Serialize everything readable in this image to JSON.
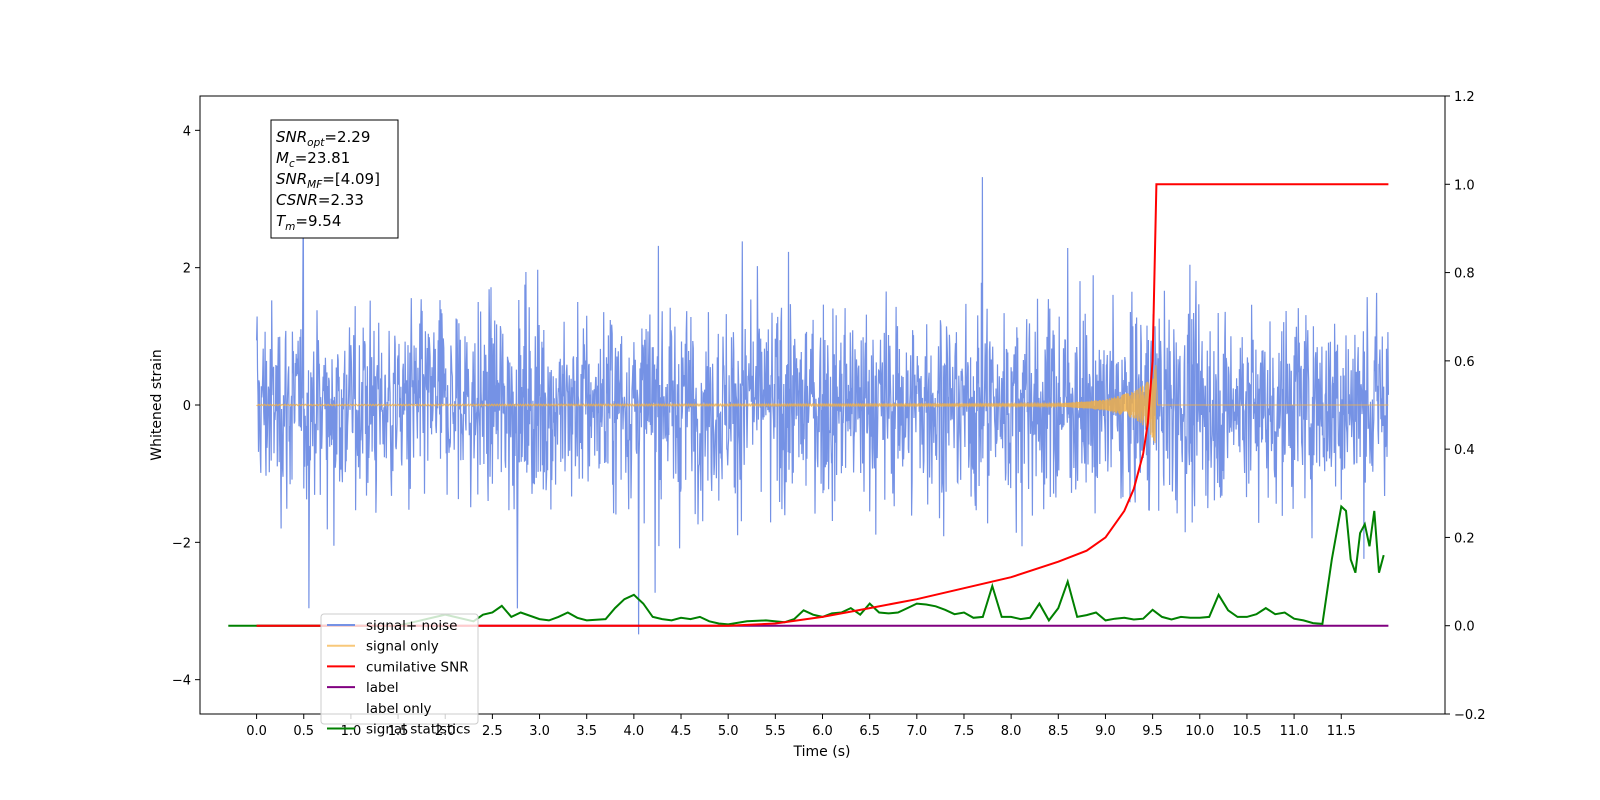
{
  "chart_data": {
    "type": "line",
    "xlabel": "Time (s)",
    "ylabel": "Whitened strain",
    "xlim": [
      -0.6,
      12.6
    ],
    "ylim": [
      -4.5,
      4.5
    ],
    "y2lim": [
      -0.2,
      1.2
    ],
    "x_ticks": [
      "0.0",
      "0.5",
      "1.0",
      "1.5",
      "2.0",
      "2.5",
      "3.0",
      "3.5",
      "4.0",
      "4.5",
      "5.0",
      "5.5",
      "6.0",
      "6.5",
      "7.0",
      "7.5",
      "8.0",
      "8.5",
      "9.0",
      "9.5",
      "10.0",
      "10.5",
      "11.0",
      "11.5"
    ],
    "y_ticks": [
      "4",
      "2",
      "0",
      "−2",
      "−4"
    ],
    "y2_ticks": [
      "1.2",
      "1.0",
      "0.8",
      "0.6",
      "0.4",
      "0.2",
      "0.0",
      "−0.2"
    ],
    "legend_position": "lower-left",
    "legend": [
      "signal+ noise",
      "signal only",
      "cumilative SNR",
      "label",
      "label only",
      "signal statistics"
    ],
    "annotation_lines": [
      {
        "var": "SNR",
        "sub": "opt",
        "value": "=2.29"
      },
      {
        "var": "M",
        "sub": "c",
        "value": "=23.81"
      },
      {
        "var": "SNR",
        "sub": "MF",
        "value": "=[4.09]"
      },
      {
        "var": "CSNR",
        "sub": "",
        "value": "=2.33"
      },
      {
        "var": "T",
        "sub": "m",
        "value": "=9.54"
      }
    ],
    "colors": {
      "signal_noise": "#7592e5",
      "signal_only": "#f5b041",
      "cumulative_snr": "#ff0000",
      "label": "#800080",
      "signal_statistics": "#008000"
    },
    "series": [
      {
        "name": "signal+ noise",
        "axis": "left",
        "x_range": [
          0.0,
          12.0
        ],
        "envelope_approx": [
          -4.0,
          4.1
        ]
      },
      {
        "name": "signal only",
        "axis": "left",
        "x": [
          0.0,
          8.5,
          9.0,
          9.3,
          9.45,
          9.54,
          9.55,
          12.0
        ],
        "amplitude": [
          0.01,
          0.02,
          0.08,
          0.2,
          0.35,
          0.6,
          0.0,
          0.0
        ]
      },
      {
        "name": "cumilative SNR",
        "axis": "right",
        "x": [
          0.0,
          5.0,
          5.5,
          6.0,
          6.5,
          7.0,
          7.5,
          8.0,
          8.5,
          8.8,
          9.0,
          9.2,
          9.3,
          9.4,
          9.45,
          9.5,
          9.52,
          9.54,
          12.0
        ],
        "y": [
          0.0,
          0.0,
          0.005,
          0.02,
          0.04,
          0.06,
          0.085,
          0.11,
          0.145,
          0.17,
          0.2,
          0.26,
          0.31,
          0.39,
          0.46,
          0.6,
          0.8,
          1.0,
          1.0
        ]
      },
      {
        "name": "label",
        "axis": "right",
        "x": [
          0.0,
          12.0
        ],
        "y": [
          0.0,
          0.0
        ]
      },
      {
        "name": "signal statistics",
        "axis": "right",
        "x": [
          -0.3,
          0.0,
          0.5,
          1.0,
          1.5,
          1.7,
          1.9,
          2.0,
          2.1,
          2.3,
          2.4,
          2.5,
          2.6,
          2.7,
          2.8,
          3.0,
          3.1,
          3.2,
          3.3,
          3.4,
          3.5,
          3.7,
          3.8,
          3.9,
          4.0,
          4.1,
          4.2,
          4.3,
          4.4,
          4.5,
          4.6,
          4.7,
          4.8,
          4.9,
          5.0,
          5.2,
          5.4,
          5.6,
          5.7,
          5.8,
          5.9,
          6.0,
          6.1,
          6.2,
          6.3,
          6.4,
          6.5,
          6.6,
          6.7,
          6.8,
          6.9,
          7.0,
          7.1,
          7.2,
          7.3,
          7.4,
          7.5,
          7.6,
          7.7,
          7.8,
          7.9,
          8.0,
          8.1,
          8.2,
          8.3,
          8.4,
          8.5,
          8.6,
          8.7,
          8.8,
          8.9,
          9.0,
          9.1,
          9.2,
          9.3,
          9.4,
          9.5,
          9.6,
          9.7,
          9.8,
          9.9,
          10.0,
          10.1,
          10.2,
          10.3,
          10.4,
          10.5,
          10.6,
          10.7,
          10.8,
          10.9,
          11.0,
          11.1,
          11.2,
          11.3,
          11.4,
          11.5,
          11.55,
          11.6,
          11.65,
          11.7,
          11.75,
          11.8,
          11.85,
          11.9,
          11.95
        ],
        "y": [
          0.0,
          0.0,
          0.0,
          0.0,
          0.0,
          0.01,
          0.02,
          0.025,
          0.02,
          0.01,
          0.025,
          0.03,
          0.045,
          0.02,
          0.03,
          0.015,
          0.012,
          0.02,
          0.03,
          0.018,
          0.012,
          0.015,
          0.04,
          0.06,
          0.07,
          0.05,
          0.02,
          0.015,
          0.012,
          0.018,
          0.015,
          0.02,
          0.01,
          0.005,
          0.003,
          0.01,
          0.012,
          0.008,
          0.015,
          0.035,
          0.025,
          0.02,
          0.028,
          0.03,
          0.04,
          0.025,
          0.05,
          0.03,
          0.028,
          0.03,
          0.04,
          0.05,
          0.048,
          0.044,
          0.036,
          0.026,
          0.03,
          0.018,
          0.02,
          0.09,
          0.02,
          0.02,
          0.015,
          0.018,
          0.05,
          0.012,
          0.04,
          0.1,
          0.02,
          0.024,
          0.03,
          0.012,
          0.016,
          0.018,
          0.014,
          0.016,
          0.036,
          0.02,
          0.014,
          0.02,
          0.018,
          0.018,
          0.02,
          0.07,
          0.035,
          0.02,
          0.02,
          0.026,
          0.04,
          0.026,
          0.03,
          0.016,
          0.012,
          0.006,
          0.004,
          0.15,
          0.27,
          0.26,
          0.15,
          0.12,
          0.21,
          0.23,
          0.18,
          0.26,
          0.12,
          0.16
        ]
      }
    ]
  }
}
